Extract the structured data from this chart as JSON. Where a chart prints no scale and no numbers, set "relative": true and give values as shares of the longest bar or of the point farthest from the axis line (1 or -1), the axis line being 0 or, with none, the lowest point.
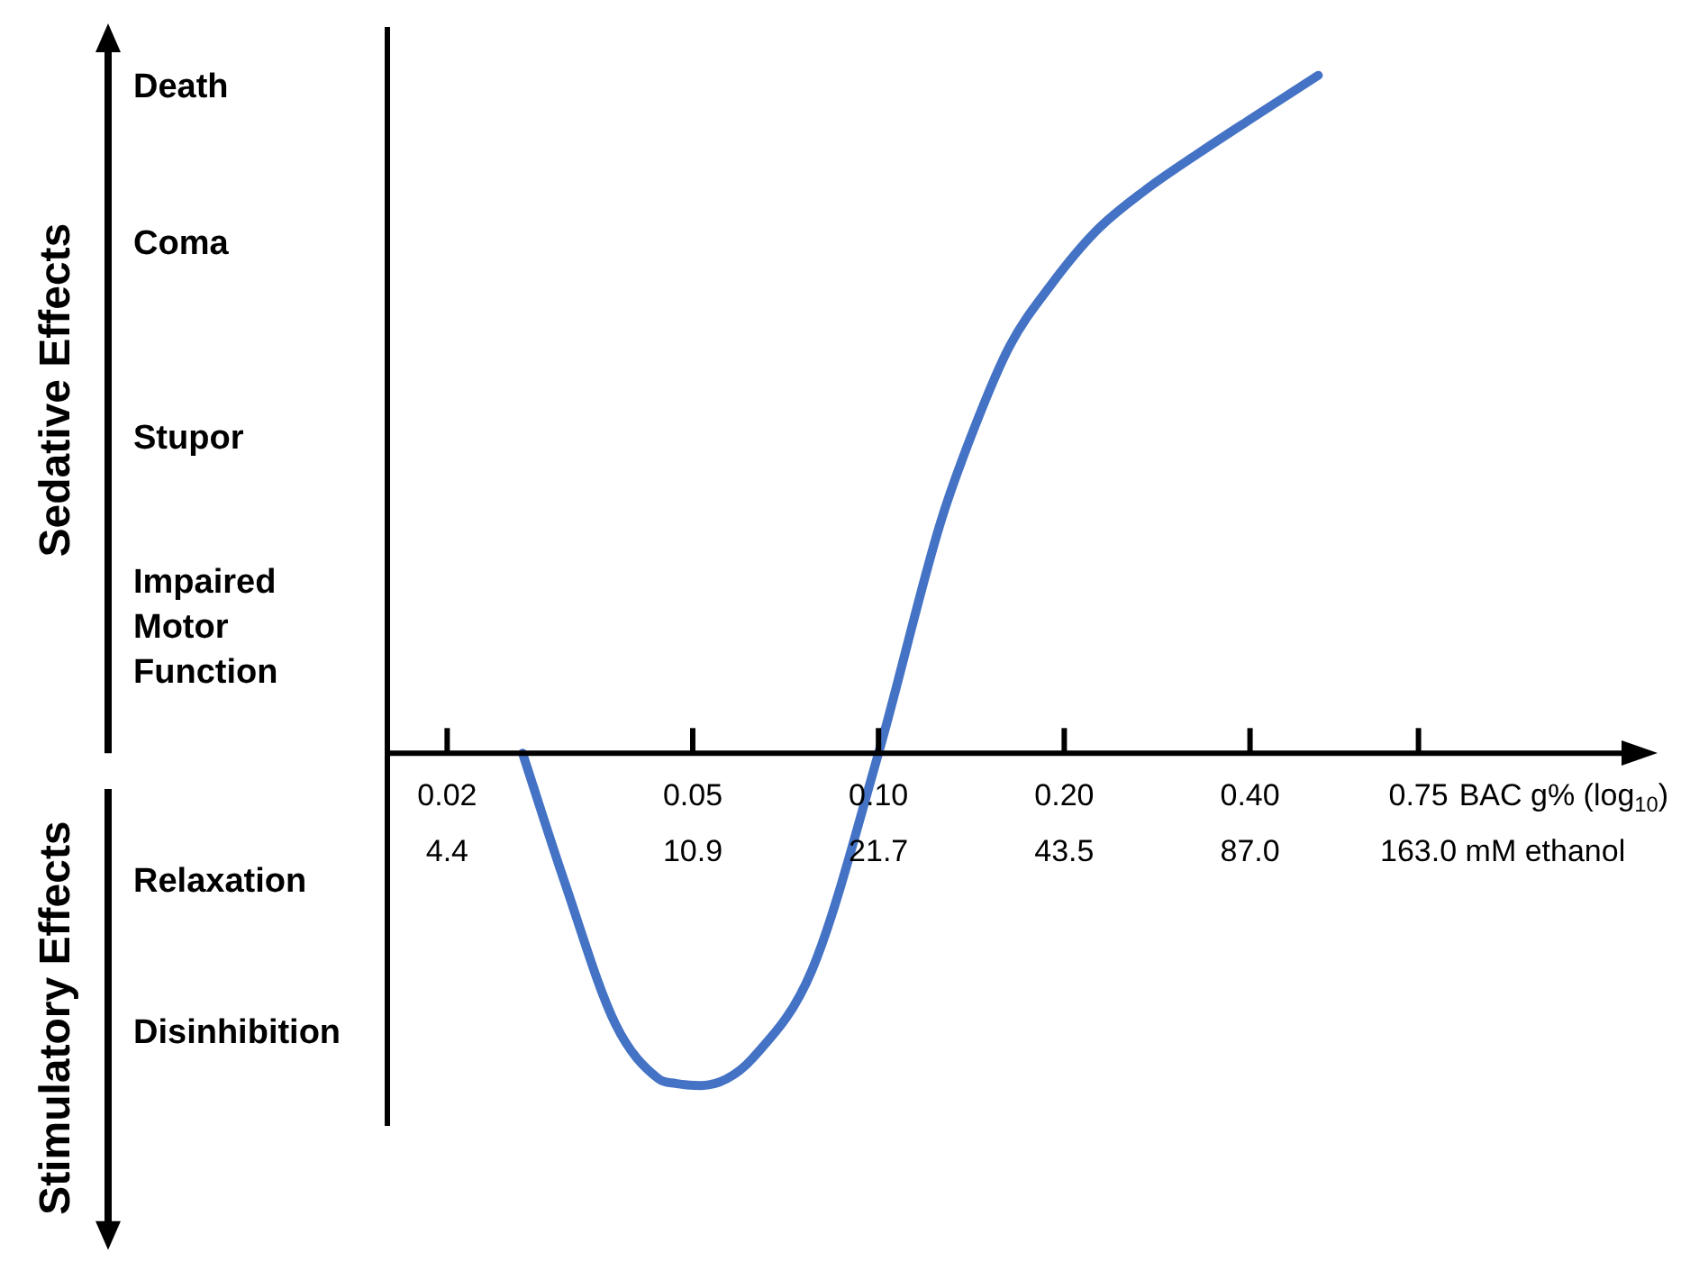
{
  "chart_data": {
    "type": "line",
    "xlabel": "BAC g% (log$_{10}$)",
    "log": "x",
    "marker": "none",
    "relative": true,
    "xlim": [
      0.016,
      1.6
    ],
    "xticks": [
      0.02,
      0.05,
      {
        "value": 0.1,
        "label": "0.10"
      },
      {
        "value": 0.2,
        "label": "0.20"
      },
      {
        "value": 0.4,
        "label": "0.40"
      },
      0.75
    ],
    "annotations": [
      "Death",
      "Coma",
      "Stupor",
      "Impaired Motor Function",
      "Relaxation",
      "Disinhibition",
      "Sedative Effects",
      "Stimulatory Effects",
      "4.4",
      "10.9",
      "21.7",
      "43.5",
      "87.0",
      "163.0 mM ethanol"
    ],
    "x": [
      0.0265,
      0.031,
      0.0375,
      0.044,
      0.0469,
      0.0516,
      0.0568,
      0.0625,
      0.078,
      0.1,
      0.126,
      0.143,
      0.163,
      0.19,
      0.225,
      0.27,
      0.33,
      0.4,
      0.516
    ],
    "series": [
      {
        "color": "#4472c4",
        "values": [
          0,
          -0.19,
          -0.4,
          -0.48,
          -0.487,
          -0.49,
          -0.48,
          -0.45,
          -0.32,
          0,
          0.34,
          0.48,
          0.6,
          0.69,
          0.77,
          0.83,
          0.885,
          0.935,
          1
        ]
      }
    ]
  }
}
